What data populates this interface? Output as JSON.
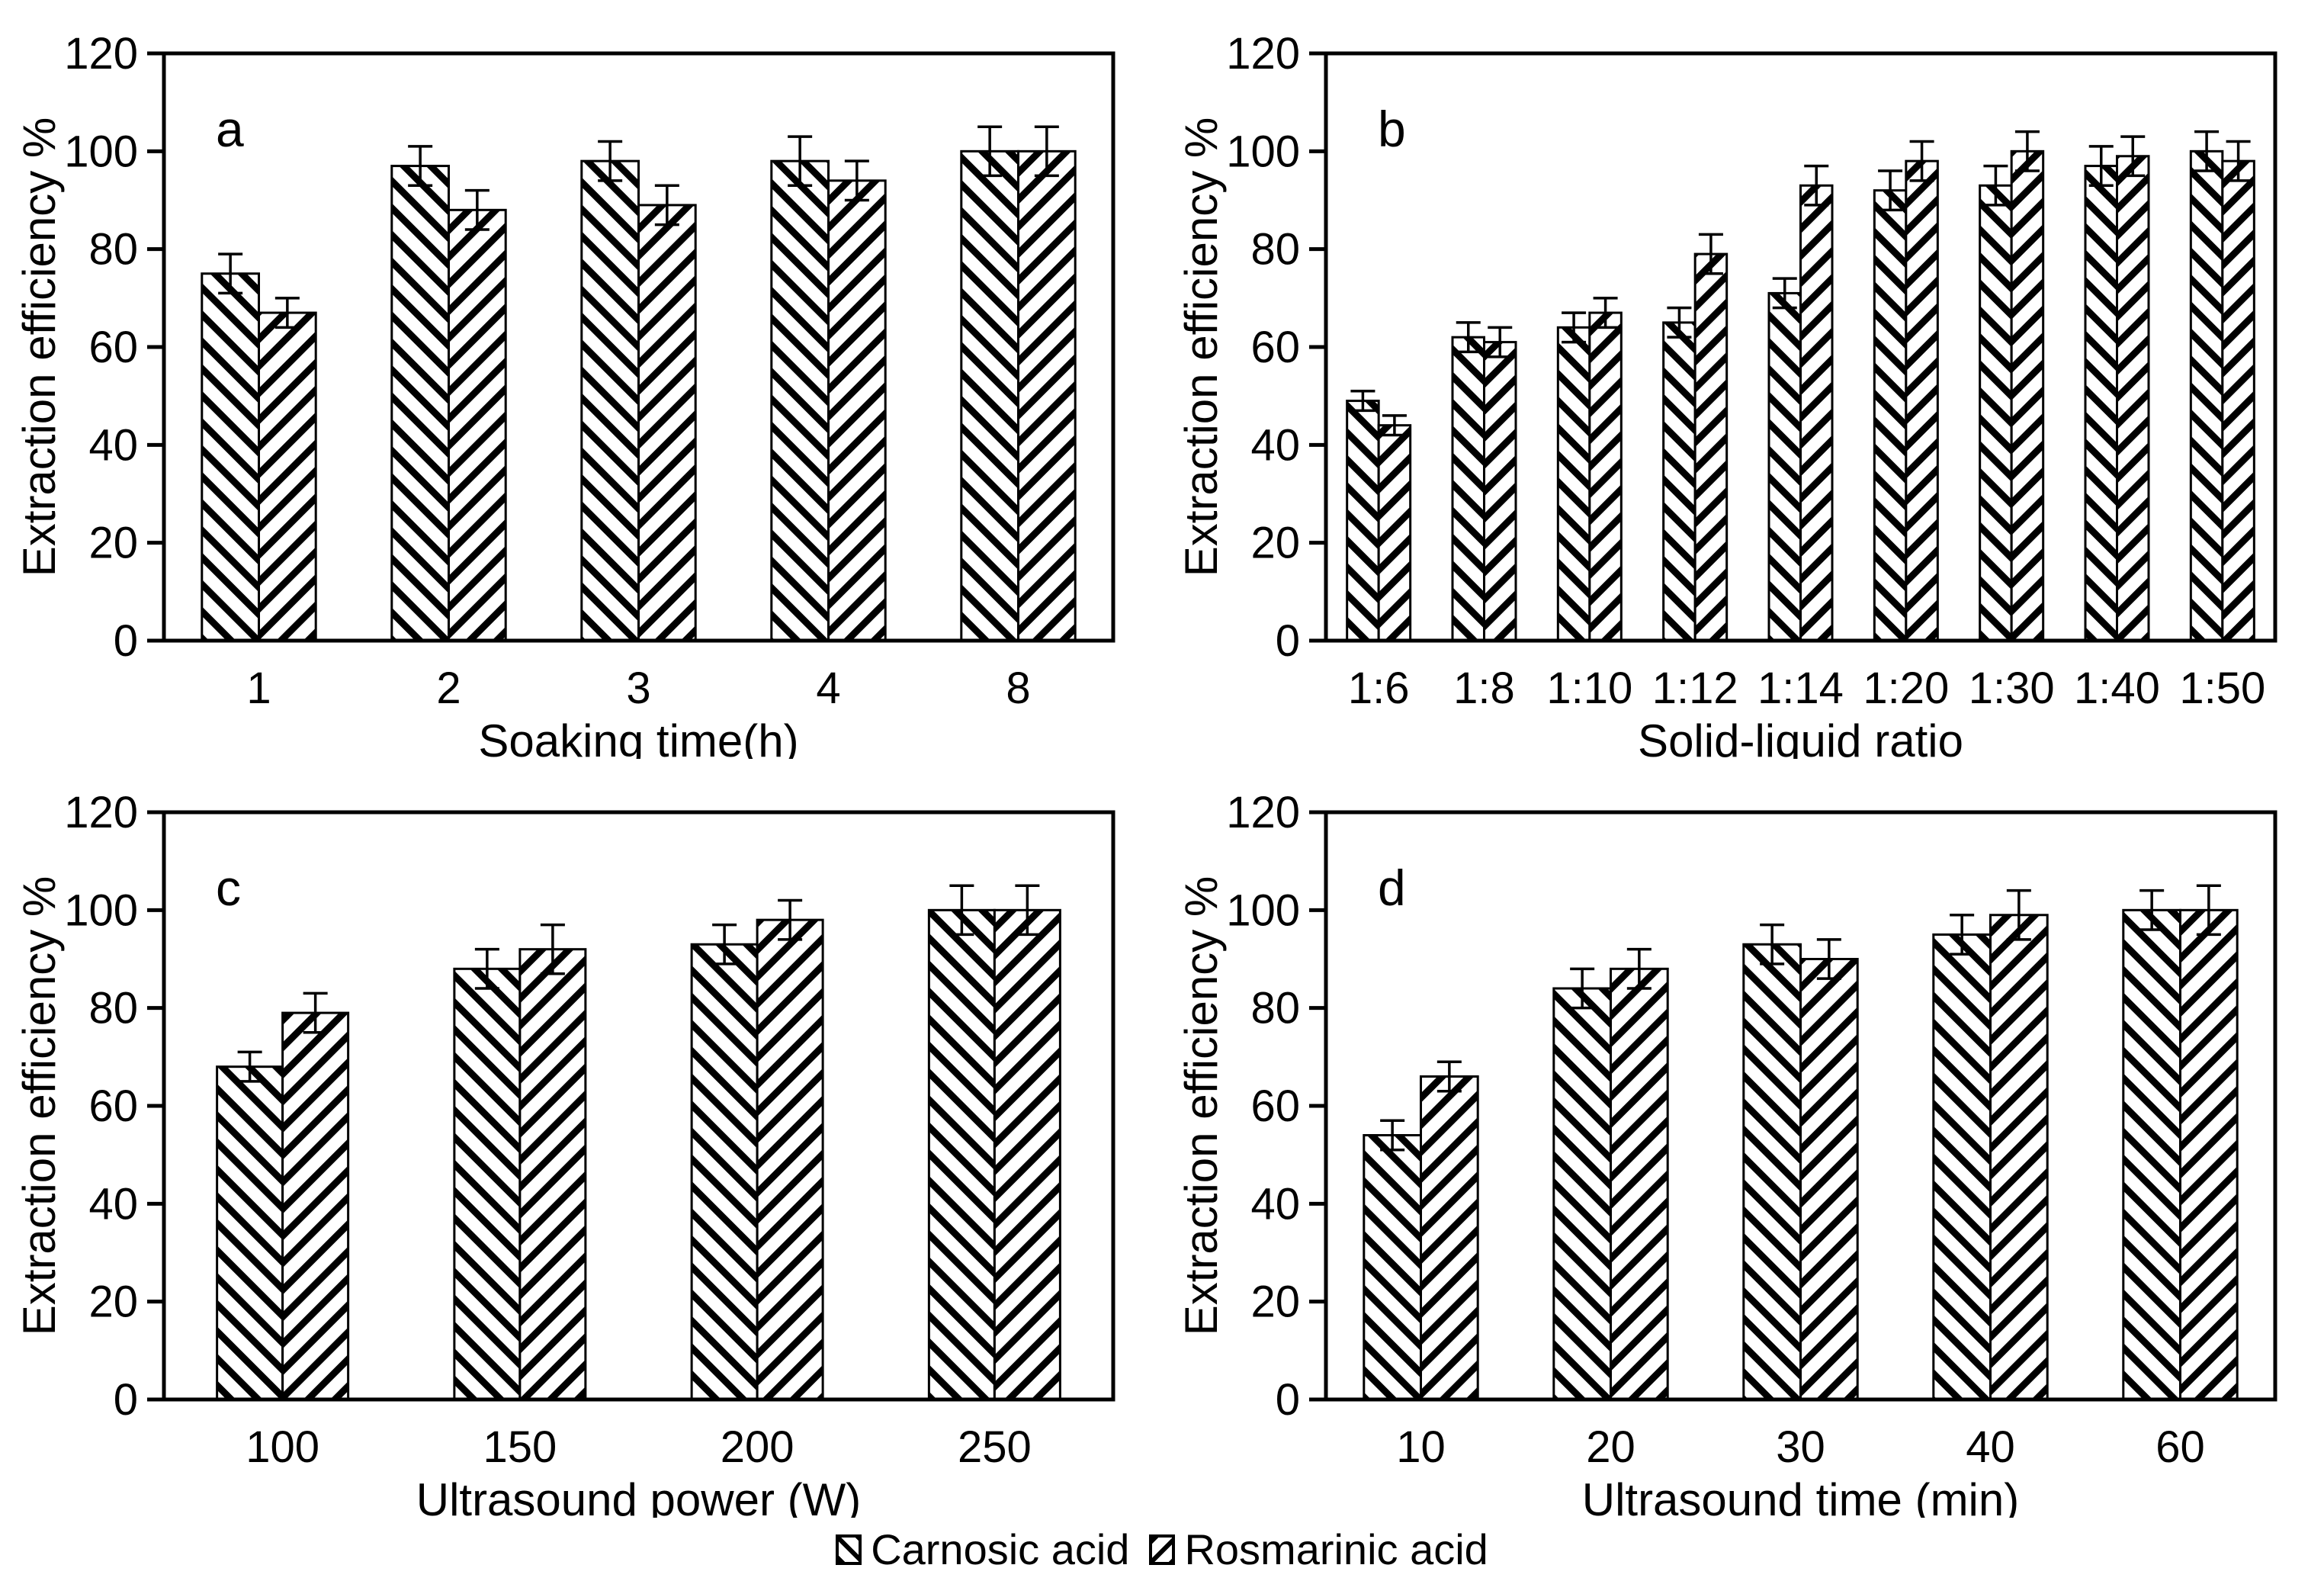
{
  "figure": {
    "y_axis_label": "Extraction efficiency %",
    "background_color": "#ffffff",
    "foreground_color": "#000000",
    "legend": {
      "position": "bottom-center",
      "items": [
        {
          "label": "Carnosic acid",
          "hatch": "backslash",
          "swatch_icon": "backslash-hatch-swatch"
        },
        {
          "label": "Rosmarinic acid",
          "hatch": "slash",
          "swatch_icon": "slash-hatch-swatch"
        }
      ]
    }
  },
  "chart_data": [
    {
      "type": "bar",
      "panel_label": "a",
      "title": "",
      "xlabel": "Soaking time(h)",
      "ylabel": "Extraction efficiency %",
      "ylim": [
        0,
        120
      ],
      "yticks": [
        0,
        20,
        40,
        60,
        80,
        100,
        120
      ],
      "grid": false,
      "categories": [
        "1",
        "2",
        "3",
        "4",
        "8"
      ],
      "series": [
        {
          "name": "Carnosic acid",
          "hatch": "backslash",
          "values": [
            75,
            97,
            98,
            98,
            100
          ],
          "errors": [
            4,
            4,
            4,
            5,
            5
          ]
        },
        {
          "name": "Rosmarinic acid",
          "hatch": "slash",
          "values": [
            67,
            88,
            89,
            94,
            100
          ],
          "errors": [
            3,
            4,
            4,
            4,
            5
          ]
        }
      ]
    },
    {
      "type": "bar",
      "panel_label": "b",
      "title": "",
      "xlabel": "Solid-liquid ratio",
      "ylabel": "Extraction efficiency %",
      "ylim": [
        0,
        120
      ],
      "yticks": [
        0,
        20,
        40,
        60,
        80,
        100,
        120
      ],
      "grid": false,
      "categories": [
        "1:6",
        "1:8",
        "1:10",
        "1:12",
        "1:14",
        "1:20",
        "1:30",
        "1:40",
        "1:50"
      ],
      "series": [
        {
          "name": "Carnosic acid",
          "hatch": "backslash",
          "values": [
            49,
            62,
            64,
            65,
            71,
            92,
            93,
            97,
            100
          ],
          "errors": [
            2,
            3,
            3,
            3,
            3,
            4,
            4,
            4,
            4
          ]
        },
        {
          "name": "Rosmarinic acid",
          "hatch": "slash",
          "values": [
            44,
            61,
            67,
            79,
            93,
            98,
            100,
            99,
            98
          ],
          "errors": [
            2,
            3,
            3,
            4,
            4,
            4,
            4,
            4,
            4
          ]
        }
      ]
    },
    {
      "type": "bar",
      "panel_label": "c",
      "title": "",
      "xlabel": "Ultrasound power (W)",
      "ylabel": "Extraction efficiency %",
      "ylim": [
        0,
        120
      ],
      "yticks": [
        0,
        20,
        40,
        60,
        80,
        100,
        120
      ],
      "grid": false,
      "categories": [
        "100",
        "150",
        "200",
        "250"
      ],
      "series": [
        {
          "name": "Carnosic acid",
          "hatch": "backslash",
          "values": [
            68,
            88,
            93,
            100
          ],
          "errors": [
            3,
            4,
            4,
            5
          ]
        },
        {
          "name": "Rosmarinic acid",
          "hatch": "slash",
          "values": [
            79,
            92,
            98,
            100
          ],
          "errors": [
            4,
            5,
            4,
            5
          ]
        }
      ]
    },
    {
      "type": "bar",
      "panel_label": "d",
      "title": "",
      "xlabel": "Ultrasound time (min)",
      "ylabel": "Extraction efficiency %",
      "ylim": [
        0,
        120
      ],
      "yticks": [
        0,
        20,
        40,
        60,
        80,
        100,
        120
      ],
      "grid": false,
      "categories": [
        "10",
        "20",
        "30",
        "40",
        "60"
      ],
      "series": [
        {
          "name": "Carnosic acid",
          "hatch": "backslash",
          "values": [
            54,
            84,
            93,
            95,
            100
          ],
          "errors": [
            3,
            4,
            4,
            4,
            4
          ]
        },
        {
          "name": "Rosmarinic acid",
          "hatch": "slash",
          "values": [
            66,
            88,
            90,
            99,
            100
          ],
          "errors": [
            3,
            4,
            4,
            5,
            5
          ]
        }
      ]
    }
  ]
}
